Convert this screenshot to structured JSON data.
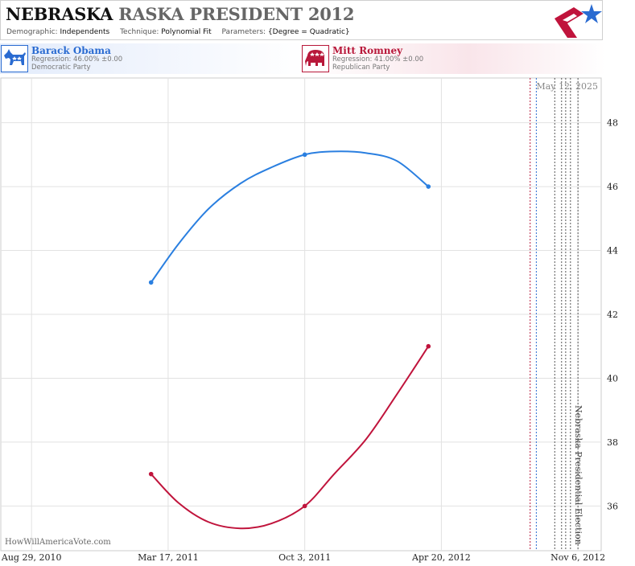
{
  "header": {
    "title_state": "NEBRASKA",
    "title_rest": "RASKA PRESIDENT 2012",
    "demographic_label": "Demographic:",
    "demographic_value": "Independents",
    "technique_label": "Technique:",
    "technique_value": "Polynomial Fit",
    "parameters_label": "Parameters:",
    "parameters_value": "{Degree = Quadratic}"
  },
  "candidates": [
    {
      "name": "Barack Obama",
      "regression": "Regression: 46.00% ±0.00",
      "party": "Democratic Party",
      "icon": "donkey-icon",
      "color": "#2a6bd1"
    },
    {
      "name": "Mitt Romney",
      "regression": "Regression: 41.00% ±0.00",
      "party": "Republican Party",
      "icon": "elephant-icon",
      "color": "#b8183a"
    }
  ],
  "watermark": "HowWillAmericaVote.com",
  "chart_data": {
    "type": "line",
    "x_axis": {
      "type": "date",
      "range": [
        "2010-07-15",
        "2012-12-10"
      ],
      "ticks": [
        {
          "date": "2010-08-29",
          "label": "Aug 29, 2010"
        },
        {
          "date": "2011-03-17",
          "label": "Mar 17, 2011"
        },
        {
          "date": "2011-10-03",
          "label": "Oct 3, 2011"
        },
        {
          "date": "2012-04-20",
          "label": "Apr 20, 2012"
        },
        {
          "date": "2012-11-06",
          "label": "Nov 6, 2012"
        }
      ]
    },
    "y_axis": {
      "ylim": [
        34.6,
        49.4
      ],
      "ticks": [
        36,
        38,
        40,
        42,
        44,
        46,
        48
      ],
      "position": "right"
    },
    "grid": true,
    "series": [
      {
        "name": "Barack Obama",
        "color": "#2a7fe0",
        "points": [
          {
            "date": "2011-02-20",
            "value": 43
          },
          {
            "date": "2011-10-03",
            "value": 47
          },
          {
            "date": "2012-04-01",
            "value": 46
          }
        ],
        "fit": [
          {
            "date": "2011-02-20",
            "value": 43.0
          },
          {
            "date": "2011-04-01",
            "value": 44.2
          },
          {
            "date": "2011-05-15",
            "value": 45.3
          },
          {
            "date": "2011-07-01",
            "value": 46.1
          },
          {
            "date": "2011-08-15",
            "value": 46.6
          },
          {
            "date": "2011-10-03",
            "value": 47.0
          },
          {
            "date": "2011-11-15",
            "value": 47.1
          },
          {
            "date": "2012-01-01",
            "value": 47.05
          },
          {
            "date": "2012-02-15",
            "value": 46.8
          },
          {
            "date": "2012-04-01",
            "value": 46.0
          }
        ]
      },
      {
        "name": "Mitt Romney",
        "color": "#c0143c",
        "points": [
          {
            "date": "2011-02-20",
            "value": 37
          },
          {
            "date": "2011-10-03",
            "value": 36
          },
          {
            "date": "2012-04-01",
            "value": 41
          }
        ],
        "fit": [
          {
            "date": "2011-02-20",
            "value": 37.0
          },
          {
            "date": "2011-04-01",
            "value": 36.1
          },
          {
            "date": "2011-05-15",
            "value": 35.5
          },
          {
            "date": "2011-07-01",
            "value": 35.3
          },
          {
            "date": "2011-08-15",
            "value": 35.45
          },
          {
            "date": "2011-10-03",
            "value": 36.0
          },
          {
            "date": "2011-11-15",
            "value": 37.0
          },
          {
            "date": "2012-01-01",
            "value": 38.1
          },
          {
            "date": "2012-02-15",
            "value": 39.5
          },
          {
            "date": "2012-04-01",
            "value": 41.0
          }
        ]
      }
    ],
    "reference_lines": [
      {
        "date": "2012-08-28",
        "color": "#b8183a"
      },
      {
        "date": "2012-09-06",
        "color": "#2a6bd1"
      },
      {
        "date": "2012-10-03",
        "color": "#555555"
      },
      {
        "date": "2012-10-13",
        "color": "#555555"
      },
      {
        "date": "2012-10-19",
        "color": "#555555"
      },
      {
        "date": "2012-10-26",
        "color": "#555555"
      },
      {
        "date": "2012-11-06",
        "color": "#555555"
      }
    ],
    "annotations": {
      "current_date": "May 12, 2025",
      "election_label": "Nebraska Presidential Election"
    }
  }
}
